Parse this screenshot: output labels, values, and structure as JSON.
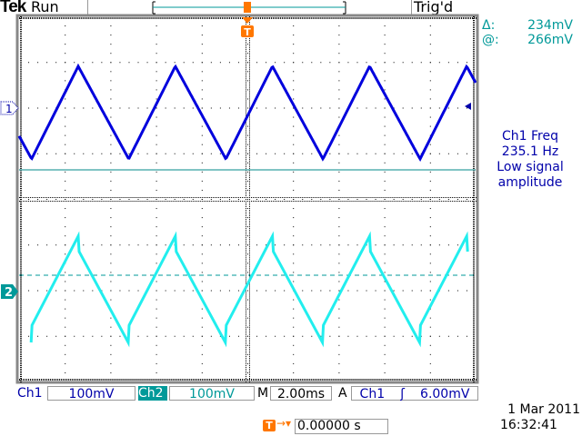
{
  "header": {
    "brand": "Tek",
    "state": "Run",
    "trigger_status": "Trig'd"
  },
  "measurements": {
    "delta_label": "Δ:",
    "delta_value": "234mV",
    "at_label": "@:",
    "at_value": "266mV"
  },
  "annotation": {
    "line1": "Ch1 Freq",
    "line2": "235.1 Hz",
    "line3": "Low signal",
    "line4": "amplitude"
  },
  "channels": [
    {
      "label": "Ch1",
      "scale": "100mV",
      "marker": "1",
      "color": "#0000dd"
    },
    {
      "label": "Ch2",
      "scale": "100mV",
      "marker": "2",
      "color": "#22eeee"
    }
  ],
  "timebase": {
    "label": "M",
    "value": "2.00ms"
  },
  "trigger": {
    "mode": "A",
    "source": "Ch1",
    "slope": "rising-edge-icon",
    "slope_glyph": "ʃ",
    "level": "6.00mV",
    "marker": "T"
  },
  "trigger_position": {
    "value": "0.00000 s"
  },
  "datetime": {
    "date": "1 Mar  2011",
    "time": "16:32:41"
  },
  "colors": {
    "graticule": "#000000",
    "cursor1": "#008888",
    "cursor2": "#009999",
    "trigger": "#ff7700"
  }
}
